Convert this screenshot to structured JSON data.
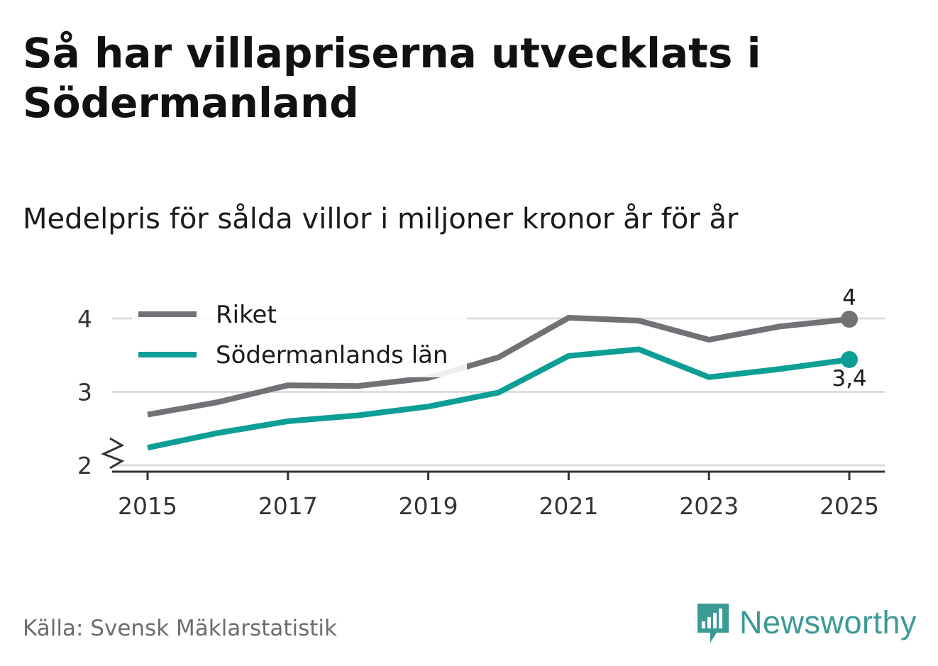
{
  "title": "Så har villapriserna utvecklats i Södermanland",
  "subtitle": "Medelpris för sålda villor i miljoner kronor år för år",
  "source": "Källa: Svensk Mäklarstatistik",
  "brand": {
    "name": "Newsworthy",
    "icon": "newsworthy-logo-icon",
    "color": "#3a9a94"
  },
  "chart_data": {
    "type": "line",
    "title": "Så har villapriserna utvecklats i Södermanland",
    "ylabel": "Medelpris för sålda villor i miljoner kronor år för år",
    "x": [
      2015,
      2016,
      2017,
      2018,
      2019,
      2020,
      2021,
      2022,
      2023,
      2024,
      2025
    ],
    "x_ticks": [
      "2015",
      "2017",
      "2019",
      "2021",
      "2023",
      "2025"
    ],
    "x_tick_values": [
      2015,
      2017,
      2019,
      2021,
      2023,
      2025
    ],
    "y_ticks": [
      "2",
      "3",
      "4"
    ],
    "y_tick_values": [
      2,
      3,
      4
    ],
    "ylim": [
      2,
      4.3
    ],
    "xlim": [
      2014.5,
      2025.5
    ],
    "axis_break": true,
    "grid": true,
    "legend_position": "top-left",
    "series": [
      {
        "name": "Riket",
        "color": "#727176",
        "values": [
          2.69,
          2.86,
          3.09,
          3.08,
          3.19,
          3.47,
          4.01,
          3.97,
          3.71,
          3.89,
          3.99
        ],
        "end_label": "4"
      },
      {
        "name": "Södermanlands län",
        "color": "#0d9e96",
        "values": [
          2.24,
          2.44,
          2.6,
          2.68,
          2.8,
          2.99,
          3.49,
          3.58,
          3.2,
          3.31,
          3.44
        ],
        "end_label": "3,4"
      }
    ]
  }
}
